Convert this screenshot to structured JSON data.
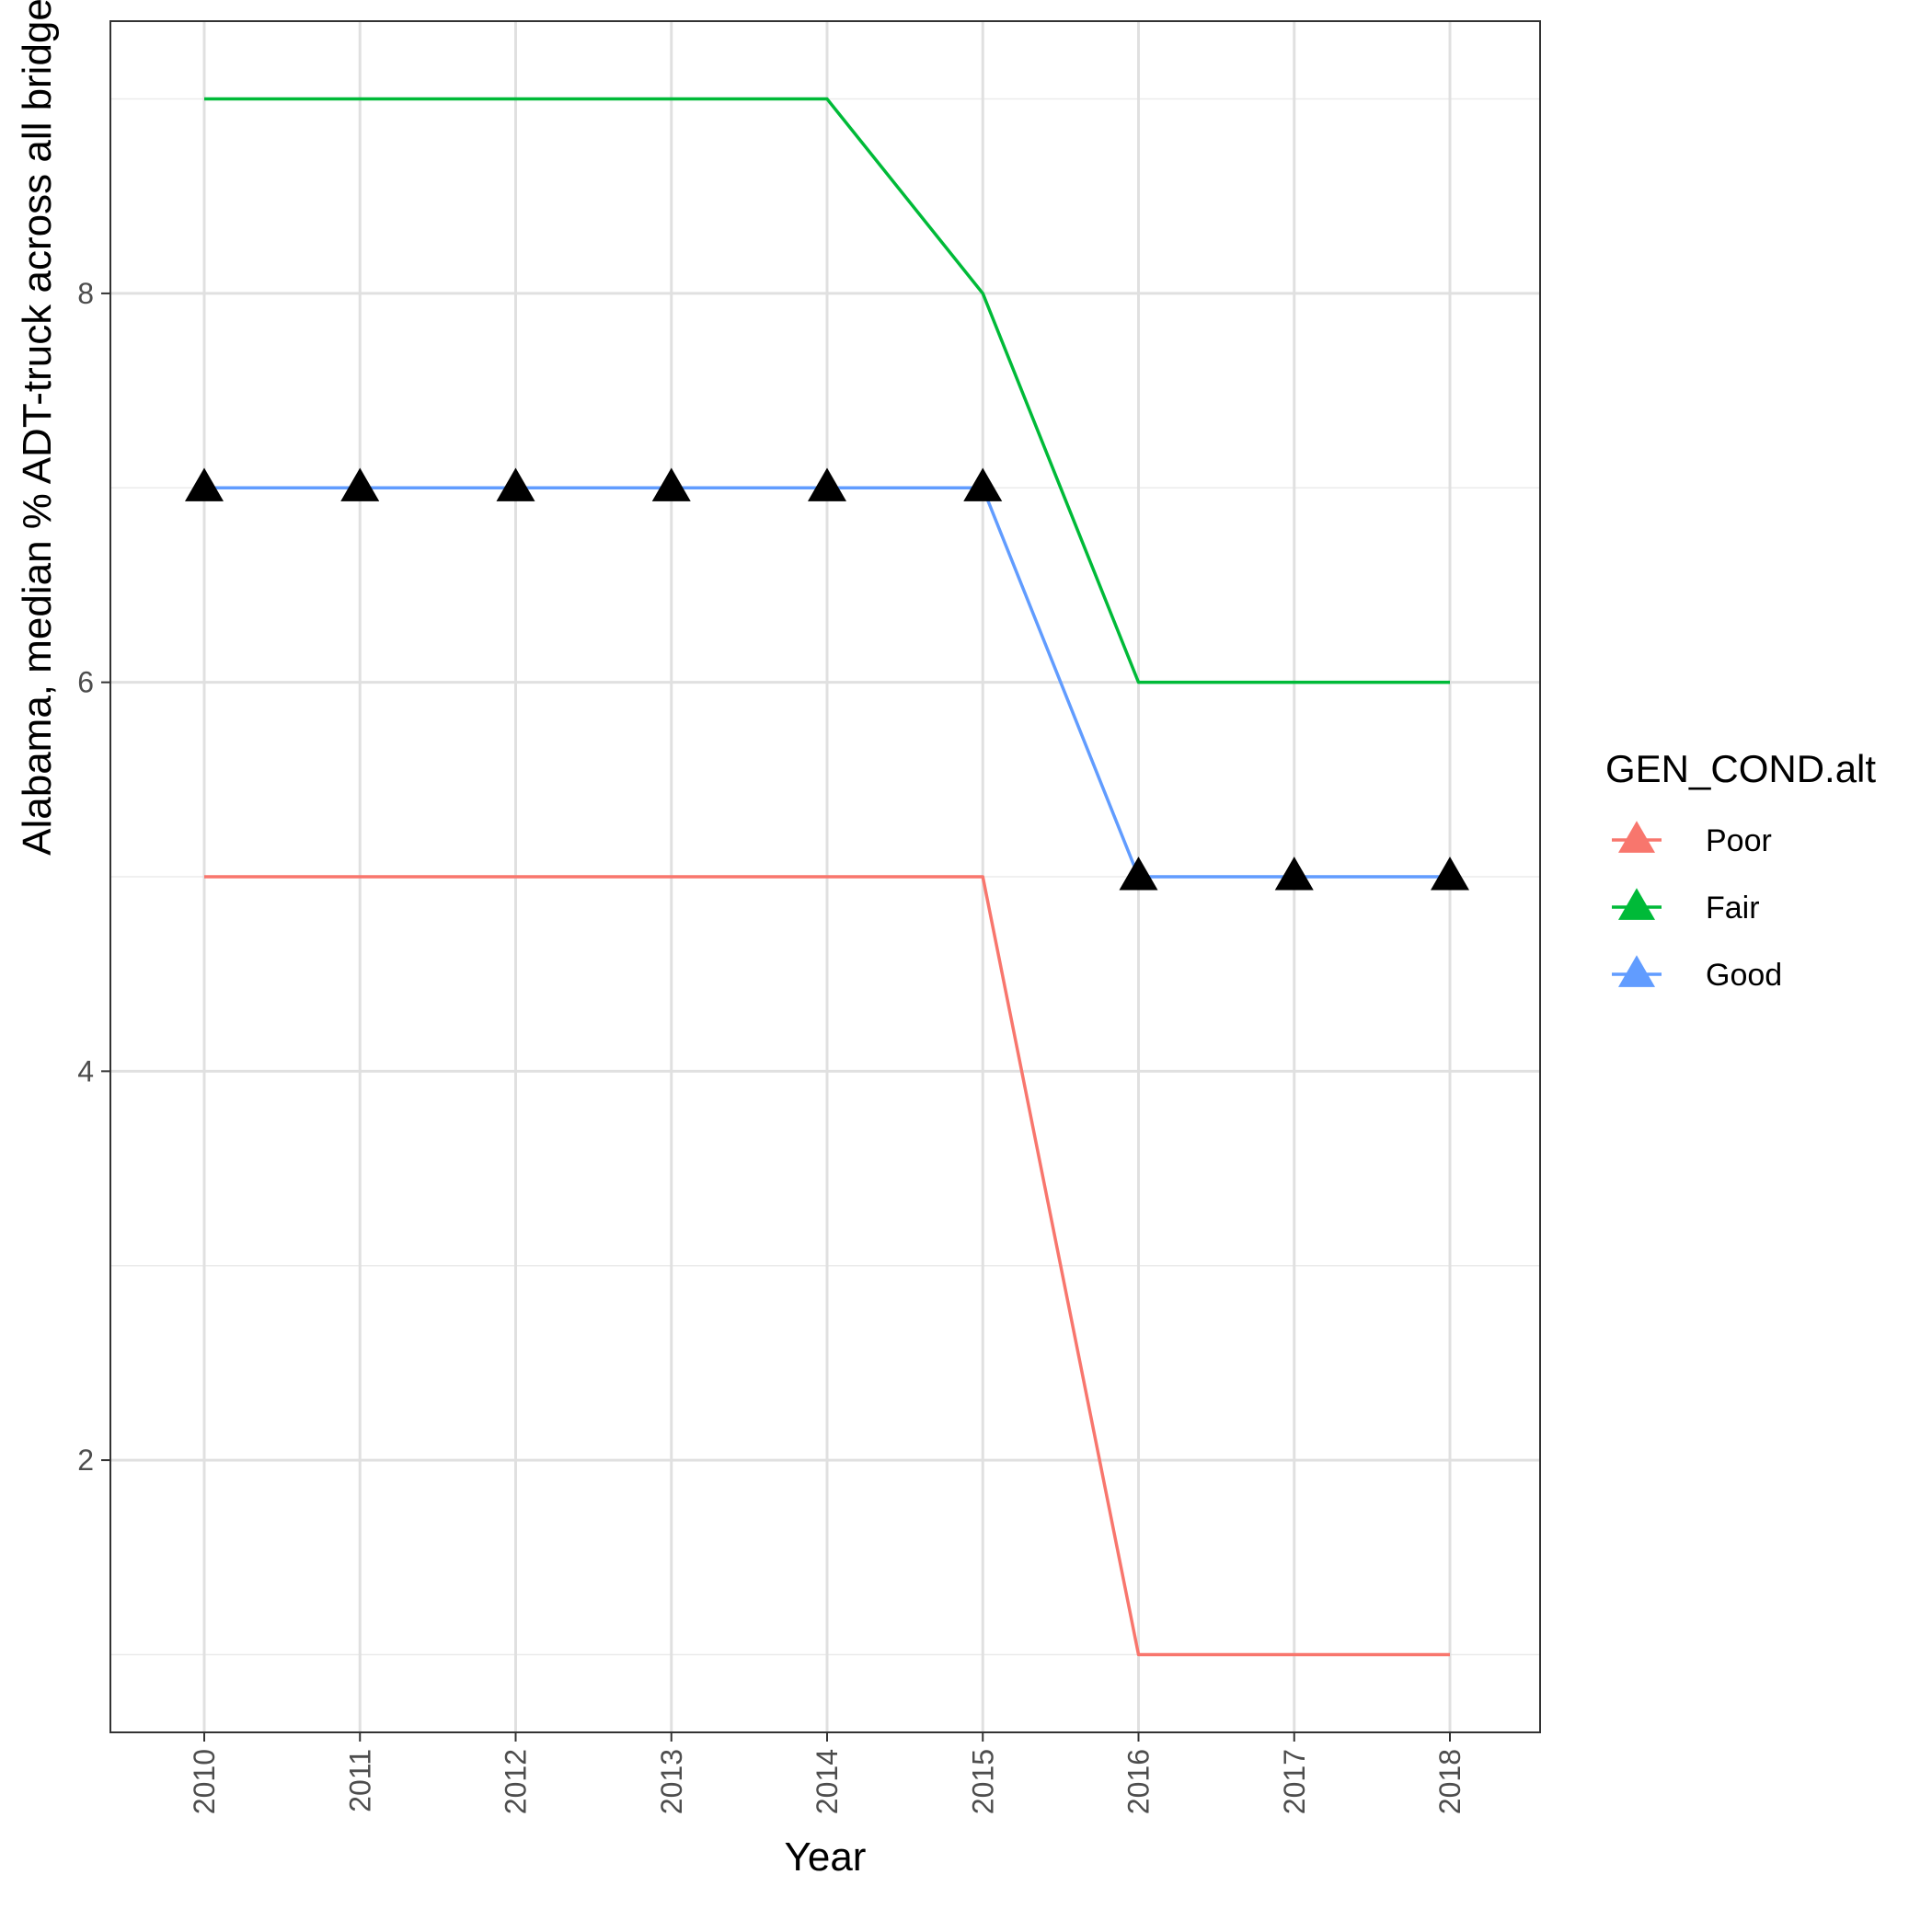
{
  "chart_data": {
    "type": "line",
    "xlabel": "Year",
    "ylabel": "Alabama, median % ADT-truck across all bridges",
    "categories": [
      "2010",
      "2011",
      "2012",
      "2013",
      "2014",
      "2015",
      "2016",
      "2017",
      "2018"
    ],
    "ylim": [
      0.6,
      9.4
    ],
    "y_ticks": [
      2,
      4,
      6,
      8
    ],
    "y_tick_labels": [
      "2",
      "4",
      "6",
      "8"
    ],
    "grid": true,
    "legend": {
      "title": "GEN_COND.alt",
      "position": "right",
      "marker": "triangle"
    },
    "series": [
      {
        "name": "Poor",
        "color": "#F8766D",
        "values": [
          5,
          5,
          5,
          5,
          5,
          5,
          1,
          1,
          1
        ],
        "markers": false
      },
      {
        "name": "Fair",
        "color": "#00BA38",
        "values": [
          9,
          9,
          9,
          9,
          9,
          8,
          6,
          6,
          6
        ],
        "markers": false
      },
      {
        "name": "Good",
        "color": "#619CFF",
        "values": [
          7,
          7,
          7,
          7,
          7,
          7,
          5,
          5,
          5
        ],
        "markers": true,
        "marker_color": "#000000"
      }
    ]
  }
}
